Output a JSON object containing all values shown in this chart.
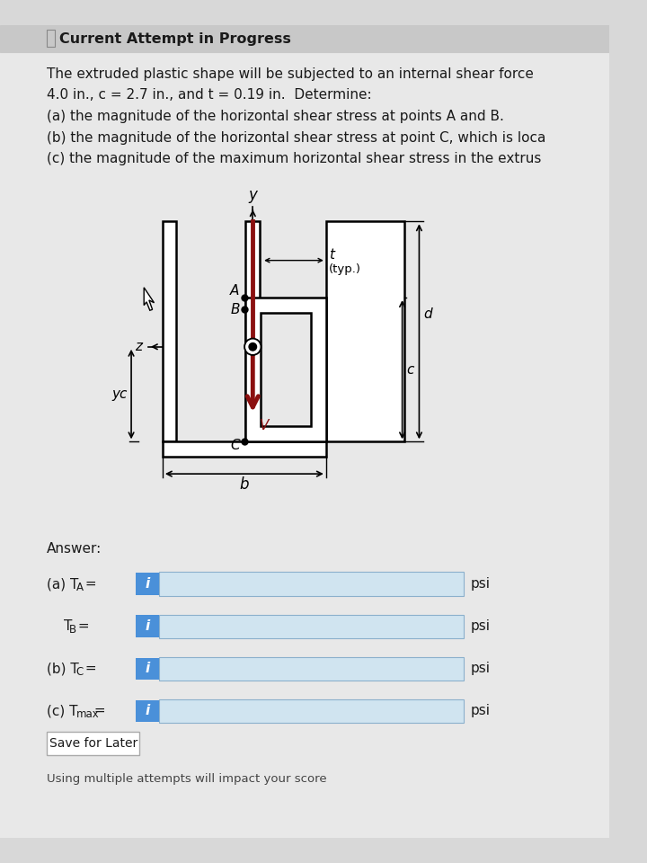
{
  "title": "Current Attempt in Progress",
  "text_lines": [
    "The extruded plastic shape will be subjected to an internal shear force",
    "4.0 in., c = 2.7 in., and t = 0.19 in.  Determine:",
    "(a) the magnitude of the horizontal shear stress at points A and B.",
    "(b) the magnitude of the horizontal shear stress at point C, which is loca",
    "(c) the magnitude of the maximum horizontal shear stress in the extrus"
  ],
  "bg_color": "#d8d8d8",
  "white": "#ffffff",
  "content_bg": "#e8e8e8",
  "blue_btn": "#4a90d9",
  "box_fill": "#d0e4f0",
  "box_border": "#aaaaaa",
  "text_color": "#1a1a1a",
  "arrow_color": "#8b1010",
  "title_bg": "#c8c8c8"
}
